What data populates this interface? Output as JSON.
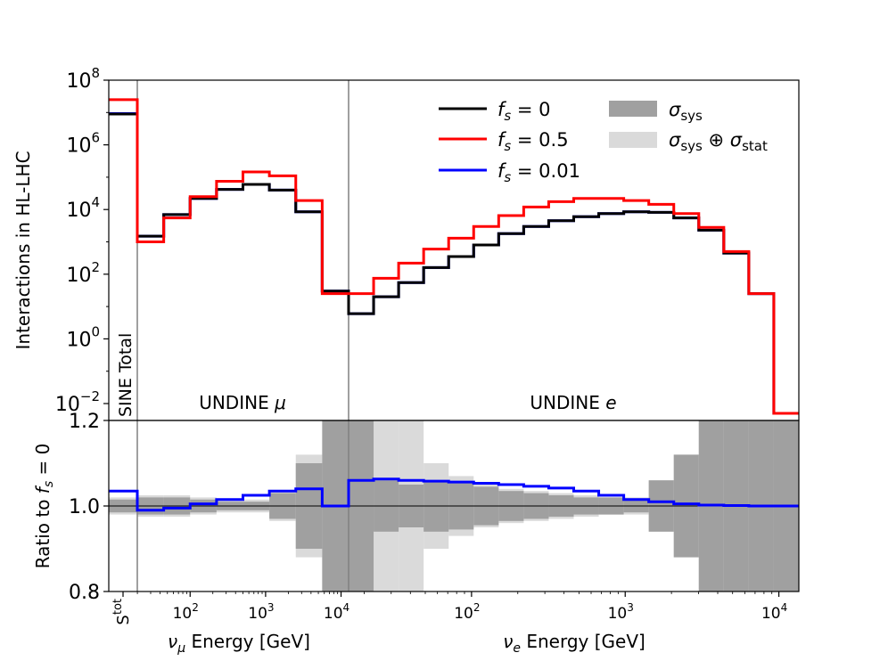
{
  "chart_data": {
    "type": "step",
    "top_panel": {
      "ylabel": "Interactions in HL-LHC",
      "yscale": "log",
      "ylim": [
        0.003,
        100000000
      ],
      "yticks": [
        {
          "base": "10",
          "exp": "8",
          "value": 100000000
        },
        {
          "base": "10",
          "exp": "6",
          "value": 1000000
        },
        {
          "base": "10",
          "exp": "4",
          "value": 10000
        },
        {
          "base": "10",
          "exp": "2",
          "value": 100
        },
        {
          "base": "10",
          "exp": "0",
          "value": 1
        },
        {
          "base": "10",
          "exp": "−2",
          "value": 0.01
        }
      ],
      "regions": {
        "sine": "SINE Total",
        "undine_mu": "UNDINE μ",
        "undine_e": "UNDINE e"
      },
      "legend": {
        "fs0": "f_s = 0",
        "fs05": "f_s = 0.5",
        "fs001": "f_s = 0.01",
        "sys": "σ_sys",
        "sysstat": "σ_sys ⊕ σ_stat"
      },
      "series": [
        {
          "name": "f_s = 0",
          "color": "#000000",
          "sine": 9000000,
          "mu": [
            1500,
            7000,
            22000,
            42000,
            60000,
            40000,
            8500,
            30
          ],
          "e": [
            6,
            20,
            55,
            160,
            350,
            800,
            1800,
            3000,
            4500,
            6000,
            7500,
            8500,
            8200,
            5500,
            2300,
            450,
            25,
            0.005
          ]
        },
        {
          "name": "f_s = 0.5",
          "color": "#ff0000",
          "sine": 25000000,
          "mu": [
            1000,
            5500,
            25000,
            75000,
            145000,
            110000,
            19000,
            25
          ],
          "e": [
            25,
            75,
            220,
            600,
            1300,
            3000,
            6500,
            12000,
            17500,
            22000,
            22000,
            19000,
            14500,
            7500,
            2800,
            500,
            25,
            0.005
          ]
        },
        {
          "name": "f_s = 0.01",
          "color": "#0000ff",
          "sine": 9300000,
          "mu": [
            1500,
            7000,
            22000,
            42000,
            60000,
            40000,
            8500,
            30
          ],
          "e": [
            6,
            20,
            55,
            160,
            350,
            800,
            1800,
            3000,
            4500,
            6000,
            7500,
            8500,
            8200,
            5500,
            2300,
            450,
            25,
            0.005
          ]
        }
      ]
    },
    "ratio_panel": {
      "ylabel": "Ratio to f_s = 0",
      "ylim": [
        0.8,
        1.2
      ],
      "yticks": [
        "0.8",
        "1.0",
        "1.2"
      ],
      "reference": 1.0,
      "ratio_fs001": {
        "sine": 1.035,
        "mu": [
          0.99,
          0.995,
          1.005,
          1.015,
          1.025,
          1.035,
          1.04,
          1.0
        ],
        "e": [
          1.06,
          1.063,
          1.06,
          1.058,
          1.056,
          1.053,
          1.05,
          1.046,
          1.042,
          1.035,
          1.025,
          1.015,
          1.01,
          1.005,
          1.002,
          1.001,
          1.0,
          1.0
        ]
      },
      "sys_band": {
        "sine": 0.015,
        "mu": [
          0.02,
          0.02,
          0.015,
          0.01,
          0.01,
          0.03,
          0.1,
          0.5
        ],
        "e": [
          0.5,
          0.06,
          0.05,
          0.06,
          0.055,
          0.045,
          0.035,
          0.03,
          0.025,
          0.02,
          0.02,
          0.015,
          0.06,
          0.12,
          0.5,
          0.5,
          0.5,
          0.5
        ]
      },
      "sysstat_band": {
        "sine": 0.02,
        "mu": [
          0.025,
          0.025,
          0.02,
          0.015,
          0.015,
          0.035,
          0.12,
          0.5
        ],
        "e": [
          0.5,
          0.5,
          0.5,
          0.1,
          0.07,
          0.05,
          0.04,
          0.035,
          0.03,
          0.025,
          0.02,
          0.02,
          0.06,
          0.12,
          0.5,
          0.5,
          0.5,
          0.5
        ]
      }
    },
    "xaxis": {
      "mu_label": "ν_μ Energy [GeV]",
      "e_label": "ν_e Energy [GeV]",
      "sine_tick": "S",
      "sine_tick_sup": "tot",
      "mu_log_range": [
        1.3,
        4.1
      ],
      "e_log_range": [
        1.2,
        4.13
      ],
      "mu_ticks": [
        {
          "base": "10",
          "exp": "2",
          "value": 100
        },
        {
          "base": "10",
          "exp": "3",
          "value": 1000
        },
        {
          "base": "10",
          "exp": "4",
          "value": 10000
        }
      ],
      "e_ticks": [
        {
          "base": "10",
          "exp": "2",
          "value": 100
        },
        {
          "base": "10",
          "exp": "3",
          "value": 1000
        },
        {
          "base": "10",
          "exp": "4",
          "value": 10000
        }
      ]
    }
  }
}
